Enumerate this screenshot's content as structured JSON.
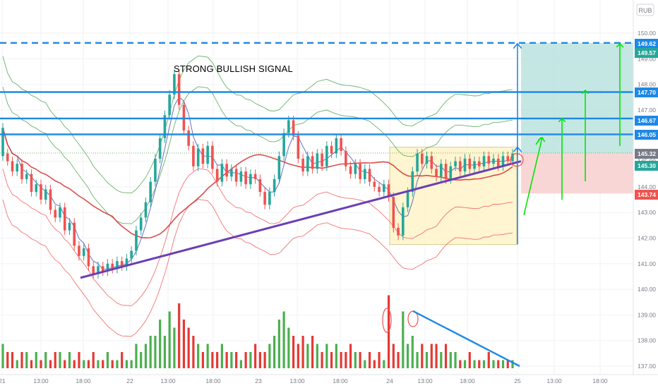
{
  "app": {
    "currency_badge": "RUB"
  },
  "annotation": {
    "signal_text": "STRONG BULLISH SIGNAL"
  },
  "colors": {
    "up": "#26a69a",
    "down": "#ef5350",
    "vol_up": "#4caf50",
    "vol_down": "#e53935",
    "level_line": "#1e88e5",
    "trend_line": "#6a3fb5",
    "arrow_green": "#00e600",
    "target_zone": "#b2dfdb",
    "stop_zone": "#f8cfcf",
    "box_fill": "#fff5cc",
    "box_stroke": "#d4c78a",
    "ma_red": "#d32f2f",
    "ma_blue": "#3f51b5",
    "band_green": "#43a047",
    "band_red": "#ef5350"
  },
  "price_axis": {
    "labels": [
      "150.00",
      "149.00",
      "148.00",
      "147.00",
      "146.00",
      "145.00",
      "144.00",
      "143.00",
      "142.00",
      "141.00",
      "140.00",
      "139.00",
      "138.00",
      "137.00"
    ],
    "level_tags": [
      {
        "text": "149.62",
        "color": "#1e88e5"
      },
      {
        "text": "149.57",
        "color": "#26a69a"
      },
      {
        "text": "147.70",
        "color": "#1e88e5"
      },
      {
        "text": "146.67",
        "color": "#1e88e5"
      },
      {
        "text": "146.05",
        "color": "#1e88e5"
      },
      {
        "text": "145.32",
        "color": "#787b86"
      },
      {
        "text": "145.30",
        "color": "#26a69a"
      },
      {
        "text": "143.74",
        "color": "#ef5350"
      }
    ]
  },
  "time_axis": {
    "labels": [
      "21",
      "13:00",
      "18:00",
      "22",
      "13:00",
      "18:00",
      "23",
      "13:00",
      "18:00",
      "24",
      "13:00",
      "18:00",
      "25",
      "13:00",
      "18:00"
    ]
  },
  "chart_data": {
    "type": "candlestick",
    "y_range": [
      136.8,
      150.6
    ],
    "price_levels": [
      149.62,
      147.7,
      146.67,
      146.05
    ],
    "current_price": 145.3,
    "reference_price": 145.32,
    "target_zone": [
      145.32,
      149.62
    ],
    "stop_zone": [
      143.74,
      145.32
    ],
    "consolidation_box": [
      141.75,
      145.55
    ],
    "trend_line": [
      140.45,
      145.0
    ],
    "volume_trend": [
      139.15,
      137.0
    ],
    "candles": [
      [
        145.2,
        146.3
      ],
      [
        145.3,
        145.0
      ],
      [
        145.0,
        144.6
      ],
      [
        144.6,
        144.9
      ],
      [
        144.9,
        144.3
      ],
      [
        144.3,
        144.5
      ],
      [
        144.5,
        143.8
      ],
      [
        143.8,
        144.1
      ],
      [
        144.1,
        143.5
      ],
      [
        143.5,
        143.9
      ],
      [
        143.9,
        143.1
      ],
      [
        143.1,
        142.8
      ],
      [
        142.8,
        143.2
      ],
      [
        143.2,
        142.3
      ],
      [
        142.3,
        142.6
      ],
      [
        142.6,
        141.7
      ],
      [
        141.7,
        141.3
      ],
      [
        141.3,
        141.6
      ],
      [
        141.6,
        140.9
      ],
      [
        140.9,
        140.6
      ],
      [
        140.6,
        140.9
      ],
      [
        140.9,
        140.7
      ],
      [
        140.7,
        141.0
      ],
      [
        141.0,
        140.8
      ],
      [
        140.8,
        141.1
      ],
      [
        141.1,
        140.9
      ],
      [
        140.9,
        141.2
      ],
      [
        141.2,
        141.5
      ],
      [
        141.5,
        142.3
      ],
      [
        142.3,
        142.8
      ],
      [
        142.8,
        143.4
      ],
      [
        143.4,
        144.2
      ],
      [
        144.2,
        145.1
      ],
      [
        145.1,
        145.9
      ],
      [
        145.9,
        146.8
      ],
      [
        146.8,
        147.6
      ],
      [
        147.6,
        148.4
      ],
      [
        148.4,
        147.2
      ],
      [
        147.2,
        146.2
      ],
      [
        146.2,
        145.6
      ],
      [
        145.6,
        144.8
      ],
      [
        144.8,
        145.5
      ],
      [
        145.5,
        144.9
      ],
      [
        144.9,
        145.6
      ],
      [
        145.6,
        144.7
      ],
      [
        144.7,
        144.2
      ],
      [
        144.2,
        144.9
      ],
      [
        144.9,
        144.4
      ],
      [
        144.4,
        144.7
      ],
      [
        144.7,
        144.2
      ],
      [
        144.2,
        144.6
      ],
      [
        144.6,
        144.1
      ],
      [
        144.1,
        144.5
      ],
      [
        144.5,
        144.3
      ],
      [
        144.3,
        143.8
      ],
      [
        143.8,
        143.3
      ],
      [
        143.3,
        143.8
      ],
      [
        143.8,
        144.3
      ],
      [
        144.3,
        145.2
      ],
      [
        145.2,
        146.1
      ],
      [
        146.1,
        146.6
      ],
      [
        146.6,
        146.0
      ],
      [
        146.0,
        145.1
      ],
      [
        145.1,
        144.6
      ],
      [
        144.6,
        145.2
      ],
      [
        145.2,
        144.7
      ],
      [
        144.7,
        145.3
      ],
      [
        145.3,
        144.8
      ],
      [
        144.8,
        145.6
      ],
      [
        145.6,
        145.3
      ],
      [
        145.3,
        145.9
      ],
      [
        145.9,
        145.4
      ],
      [
        145.4,
        144.8
      ],
      [
        144.8,
        144.5
      ],
      [
        144.5,
        144.9
      ],
      [
        144.9,
        144.3
      ],
      [
        144.3,
        144.7
      ],
      [
        144.7,
        144.2
      ],
      [
        144.2,
        144.0
      ],
      [
        144.0,
        143.8
      ],
      [
        143.8,
        144.1
      ],
      [
        144.1,
        143.6
      ],
      [
        143.6,
        142.4
      ],
      [
        142.4,
        142.1
      ],
      [
        142.1,
        143.2
      ],
      [
        143.2,
        143.8
      ],
      [
        143.8,
        144.6
      ],
      [
        144.6,
        145.3
      ],
      [
        145.3,
        144.9
      ],
      [
        144.9,
        145.2
      ],
      [
        145.2,
        144.7
      ],
      [
        144.7,
        144.4
      ],
      [
        144.4,
        144.9
      ],
      [
        144.9,
        144.3
      ],
      [
        144.3,
        144.8
      ],
      [
        144.8,
        145.0
      ],
      [
        145.0,
        144.6
      ],
      [
        144.6,
        145.1
      ],
      [
        145.1,
        144.7
      ],
      [
        144.7,
        145.0
      ],
      [
        145.0,
        144.8
      ],
      [
        144.8,
        145.2
      ],
      [
        145.2,
        144.9
      ],
      [
        144.9,
        145.1
      ],
      [
        145.1,
        144.8
      ],
      [
        144.8,
        145.2
      ],
      [
        145.2,
        145.0
      ],
      [
        145.0,
        145.3
      ]
    ],
    "volume": [
      3,
      2,
      2,
      1,
      2,
      2,
      1,
      2,
      1,
      2,
      1,
      2,
      2,
      1,
      2,
      1,
      2,
      1,
      1,
      2,
      1,
      1,
      2,
      1,
      1,
      2,
      1,
      1,
      3,
      2,
      3,
      4,
      4,
      6,
      4,
      7,
      5,
      8,
      6,
      5,
      4,
      3,
      2,
      3,
      2,
      2,
      3,
      2,
      2,
      2,
      1,
      2,
      2,
      3,
      2,
      2,
      3,
      4,
      6,
      7,
      5,
      4,
      3,
      4,
      3,
      4,
      3,
      2,
      3,
      2,
      3,
      2,
      2,
      3,
      2,
      2,
      1,
      2,
      1,
      2,
      1,
      9,
      3,
      2,
      7,
      3,
      4,
      2,
      3,
      2,
      3,
      3,
      2,
      3,
      2,
      2,
      1,
      1,
      2,
      1,
      1,
      1,
      2,
      1,
      1,
      1,
      1,
      1
    ]
  }
}
